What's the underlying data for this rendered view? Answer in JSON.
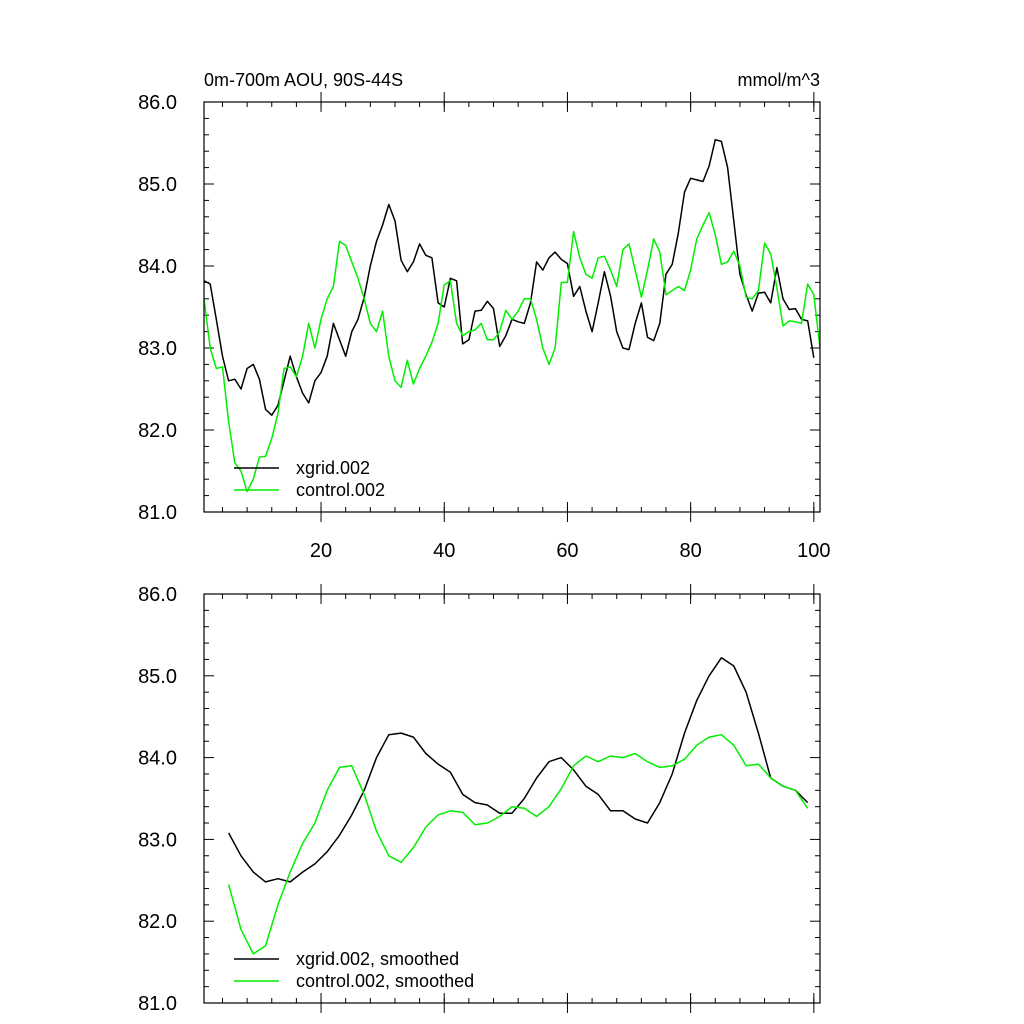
{
  "chart_data": [
    {
      "type": "line",
      "title": "0m-700m AOU, 90S-44S",
      "units": "mmol/m^3",
      "xlim": [
        1,
        101
      ],
      "ylim": [
        81.0,
        86.0
      ],
      "x_ticks": [
        20,
        40,
        60,
        80,
        100
      ],
      "x_tick_labels": [
        "20",
        "40",
        "60",
        "80",
        "100"
      ],
      "y_ticks": [
        81.0,
        82.0,
        83.0,
        84.0,
        85.0,
        86.0
      ],
      "y_tick_labels": [
        "81.0",
        "82.0",
        "83.0",
        "84.0",
        "85.0",
        "86.0"
      ],
      "legend_position": "bottom-left",
      "series": [
        {
          "name": "xgrid.002",
          "color": "#000000",
          "x": [
            1,
            2,
            3,
            4,
            5,
            6,
            7,
            8,
            9,
            10,
            11,
            12,
            13,
            14,
            15,
            16,
            17,
            18,
            19,
            20,
            21,
            22,
            23,
            24,
            25,
            26,
            27,
            28,
            29,
            30,
            31,
            32,
            33,
            34,
            35,
            36,
            37,
            38,
            39,
            40,
            41,
            42,
            43,
            44,
            45,
            46,
            47,
            48,
            49,
            50,
            51,
            52,
            53,
            54,
            55,
            56,
            57,
            58,
            59,
            60,
            61,
            62,
            63,
            64,
            65,
            66,
            67,
            68,
            69,
            70,
            71,
            72,
            73,
            74,
            75,
            76,
            77,
            78,
            79,
            80,
            81,
            82,
            83,
            84,
            85,
            86,
            87,
            88,
            89,
            90,
            91,
            92,
            93,
            94,
            95,
            96,
            97,
            98,
            99,
            100,
            101
          ],
          "values": [
            83.82,
            83.78,
            83.35,
            82.9,
            82.6,
            82.62,
            82.5,
            82.75,
            82.8,
            82.62,
            82.25,
            82.18,
            82.3,
            82.6,
            82.9,
            82.65,
            82.45,
            82.33,
            82.6,
            82.7,
            82.9,
            83.3,
            83.1,
            82.9,
            83.2,
            83.35,
            83.62,
            84.0,
            84.3,
            84.5,
            84.75,
            84.55,
            84.07,
            83.93,
            84.05,
            84.27,
            84.13,
            84.1,
            83.55,
            83.5,
            83.85,
            83.82,
            83.05,
            83.1,
            83.45,
            83.46,
            83.57,
            83.48,
            83.02,
            83.15,
            83.35,
            83.32,
            83.3,
            83.55,
            84.05,
            83.95,
            84.1,
            84.17,
            84.08,
            84.03,
            83.63,
            83.75,
            83.45,
            83.2,
            83.55,
            83.93,
            83.63,
            83.2,
            83.0,
            82.98,
            83.3,
            83.55,
            83.13,
            83.09,
            83.3,
            83.9,
            84.02,
            84.4,
            84.9,
            85.07,
            85.05,
            85.03,
            85.22,
            85.54,
            85.52,
            85.2,
            84.55,
            83.9,
            83.65,
            83.45,
            83.67,
            83.68,
            83.55,
            83.98,
            83.6,
            83.47,
            83.48,
            83.35,
            83.33,
            82.88,
            null
          ]
        },
        {
          "name": "control.002",
          "color": "#00ee00",
          "x": [
            1,
            2,
            3,
            4,
            5,
            6,
            7,
            8,
            9,
            10,
            11,
            12,
            13,
            14,
            15,
            16,
            17,
            18,
            19,
            20,
            21,
            22,
            23,
            24,
            25,
            26,
            27,
            28,
            29,
            30,
            31,
            32,
            33,
            34,
            35,
            36,
            37,
            38,
            39,
            40,
            41,
            42,
            43,
            44,
            45,
            46,
            47,
            48,
            49,
            50,
            51,
            52,
            53,
            54,
            55,
            56,
            57,
            58,
            59,
            60,
            61,
            62,
            63,
            64,
            65,
            66,
            67,
            68,
            69,
            70,
            71,
            72,
            73,
            74,
            75,
            76,
            77,
            78,
            79,
            80,
            81,
            82,
            83,
            84,
            85,
            86,
            87,
            88,
            89,
            90,
            91,
            92,
            93,
            94,
            95,
            96,
            97,
            98,
            99,
            100,
            101
          ],
          "values": [
            83.6,
            83.0,
            82.75,
            82.77,
            82.1,
            81.6,
            81.5,
            81.25,
            81.4,
            81.67,
            81.68,
            81.9,
            82.2,
            82.75,
            82.77,
            82.65,
            82.9,
            83.3,
            83.0,
            83.35,
            83.6,
            83.75,
            84.3,
            84.25,
            84.05,
            83.85,
            83.6,
            83.3,
            83.2,
            83.45,
            82.9,
            82.6,
            82.52,
            82.85,
            82.56,
            82.75,
            82.9,
            83.07,
            83.3,
            83.77,
            83.82,
            83.3,
            83.15,
            83.2,
            83.22,
            83.3,
            83.1,
            83.1,
            83.2,
            83.46,
            83.35,
            83.45,
            83.6,
            83.6,
            83.35,
            83.0,
            82.8,
            83.0,
            83.8,
            83.8,
            84.42,
            84.1,
            83.9,
            83.85,
            84.1,
            84.12,
            83.95,
            83.75,
            84.2,
            84.27,
            83.95,
            83.62,
            83.95,
            84.33,
            84.17,
            83.65,
            83.7,
            83.75,
            83.7,
            83.95,
            84.33,
            84.5,
            84.65,
            84.38,
            84.02,
            84.05,
            84.18,
            84.0,
            83.62,
            83.6,
            83.7,
            84.28,
            84.15,
            83.73,
            83.27,
            83.33,
            83.32,
            83.3,
            83.78,
            83.65,
            83.0
          ]
        }
      ]
    },
    {
      "type": "line",
      "xlim": [
        1,
        101
      ],
      "ylim": [
        81.0,
        86.0
      ],
      "x_ticks": [
        20,
        40,
        60,
        80,
        100
      ],
      "y_ticks": [
        81.0,
        82.0,
        83.0,
        84.0,
        85.0,
        86.0
      ],
      "y_tick_labels": [
        "81.0",
        "82.0",
        "83.0",
        "84.0",
        "85.0",
        "86.0"
      ],
      "legend_position": "bottom-left",
      "series": [
        {
          "name": "xgrid.002, smoothed",
          "color": "#000000",
          "x": [
            5,
            7,
            9,
            11,
            13,
            15,
            17,
            19,
            21,
            23,
            25,
            27,
            29,
            31,
            33,
            35,
            37,
            39,
            41,
            43,
            45,
            47,
            49,
            51,
            53,
            55,
            57,
            59,
            61,
            63,
            65,
            67,
            69,
            71,
            73,
            75,
            77,
            79,
            81,
            83,
            85,
            87,
            89,
            91,
            93,
            95,
            97,
            99
          ],
          "values": [
            83.08,
            82.8,
            82.6,
            82.48,
            82.52,
            82.48,
            82.6,
            82.7,
            82.85,
            83.05,
            83.3,
            83.6,
            84.0,
            84.28,
            84.3,
            84.25,
            84.05,
            83.92,
            83.82,
            83.55,
            83.45,
            83.42,
            83.32,
            83.32,
            83.5,
            83.75,
            83.95,
            84.0,
            83.85,
            83.65,
            83.55,
            83.35,
            83.35,
            83.25,
            83.2,
            83.45,
            83.8,
            84.3,
            84.7,
            85.0,
            85.22,
            85.12,
            84.8,
            84.3,
            83.75,
            83.65,
            83.6,
            83.45
          ]
        },
        {
          "name": "control.002, smoothed",
          "color": "#00ee00",
          "x": [
            5,
            7,
            9,
            11,
            13,
            15,
            17,
            19,
            21,
            23,
            25,
            27,
            29,
            31,
            33,
            35,
            37,
            39,
            41,
            43,
            45,
            47,
            49,
            51,
            53,
            55,
            57,
            59,
            61,
            63,
            65,
            67,
            69,
            71,
            73,
            75,
            77,
            79,
            81,
            83,
            85,
            87,
            89,
            91,
            93,
            95,
            97,
            99
          ],
          "values": [
            82.45,
            81.9,
            81.6,
            81.7,
            82.2,
            82.6,
            82.95,
            83.2,
            83.6,
            83.88,
            83.9,
            83.55,
            83.1,
            82.8,
            82.72,
            82.9,
            83.15,
            83.3,
            83.35,
            83.33,
            83.18,
            83.2,
            83.28,
            83.4,
            83.38,
            83.28,
            83.4,
            83.62,
            83.9,
            84.02,
            83.95,
            84.02,
            84.0,
            84.05,
            83.95,
            83.88,
            83.9,
            83.98,
            84.15,
            84.25,
            84.28,
            84.15,
            83.9,
            83.92,
            83.75,
            83.65,
            83.6,
            83.38
          ]
        }
      ]
    }
  ]
}
